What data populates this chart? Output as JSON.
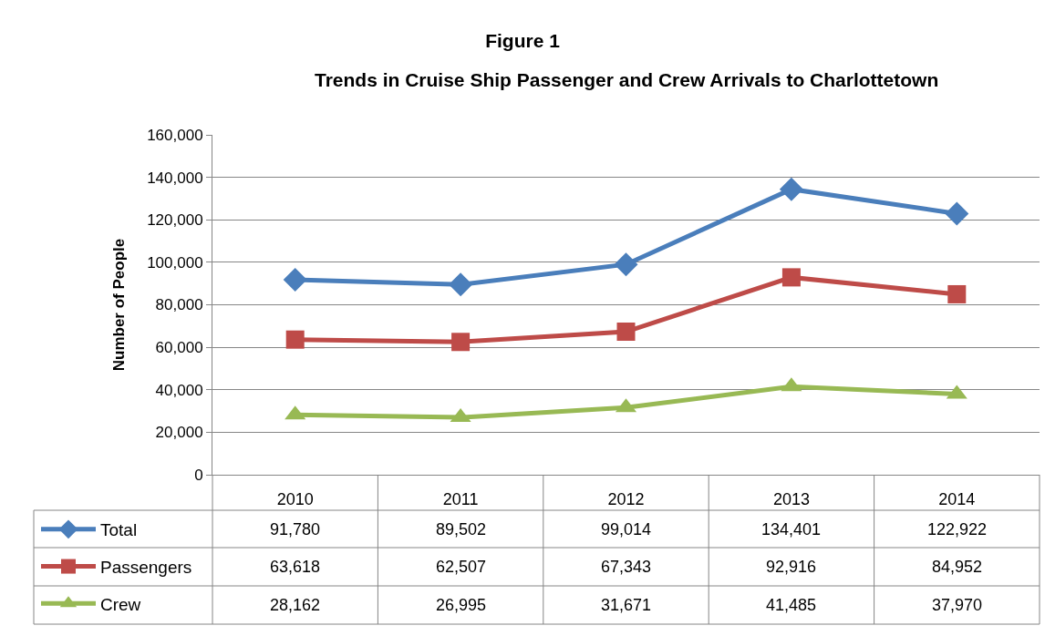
{
  "chart_data": {
    "type": "line",
    "title": "Figure 1",
    "subtitle": "Trends in Cruise Ship Passenger and Crew Arrivals to Charlottetown",
    "ylabel": "Number of People",
    "categories": [
      "2010",
      "2011",
      "2012",
      "2013",
      "2014"
    ],
    "series": [
      {
        "name": "Total",
        "color": "#4a7ebb",
        "marker": "diamond",
        "values": [
          91780,
          89502,
          99014,
          134401,
          122922
        ],
        "value_labels": [
          "91,780",
          "89,502",
          "99,014",
          "134,401",
          "122,922"
        ]
      },
      {
        "name": "Passengers",
        "color": "#be4b48",
        "marker": "square",
        "values": [
          63618,
          62507,
          67343,
          92916,
          84952
        ],
        "value_labels": [
          "63,618",
          "62,507",
          "67,343",
          "92,916",
          "84,952"
        ]
      },
      {
        "name": "Crew",
        "color": "#98b954",
        "marker": "triangle",
        "values": [
          28162,
          26995,
          31671,
          41485,
          37970
        ],
        "value_labels": [
          "28,162",
          "26,995",
          "31,671",
          "41,485",
          "37,970"
        ]
      }
    ],
    "ylim": [
      0,
      160000
    ],
    "yticks": [
      {
        "value": 0,
        "label": "0"
      },
      {
        "value": 20000,
        "label": "20,000"
      },
      {
        "value": 40000,
        "label": "40,000"
      },
      {
        "value": 60000,
        "label": "60,000"
      },
      {
        "value": 80000,
        "label": "80,000"
      },
      {
        "value": 100000,
        "label": "100,000"
      },
      {
        "value": 120000,
        "label": "120,000"
      },
      {
        "value": 140000,
        "label": "140,000"
      },
      {
        "value": 160000,
        "label": "160,000"
      }
    ],
    "grid": "y",
    "legend": "bottom left",
    "line_style": "solid"
  }
}
